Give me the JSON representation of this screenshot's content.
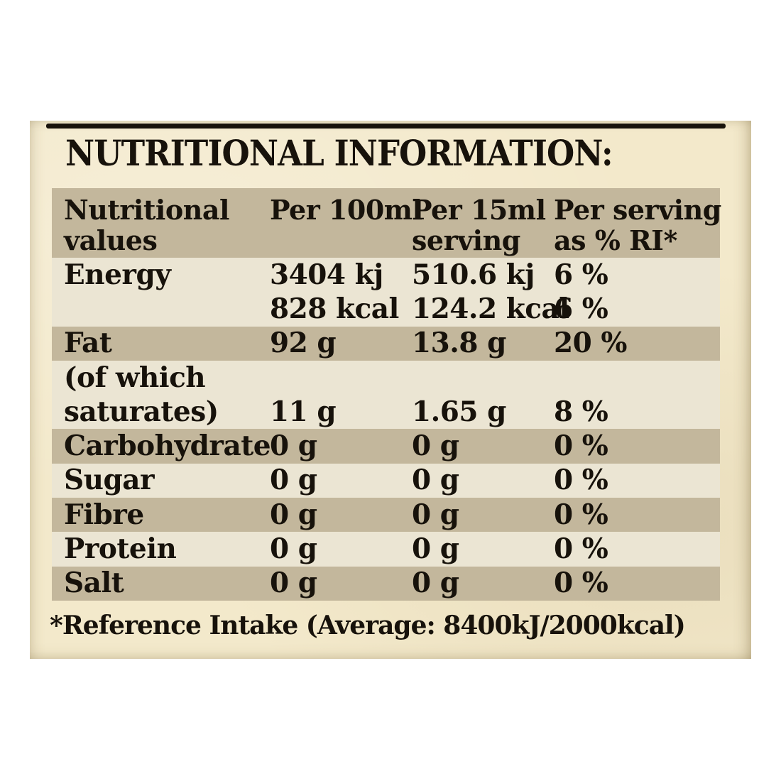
{
  "colors": {
    "page_bg": "#ffffff",
    "paper": "#f3e9cb",
    "band": "#c3b79c",
    "row_light": "#ebe5d3",
    "ink": "#17120b"
  },
  "label": {
    "title": "NUTRITIONAL INFORMATION:",
    "footnote": "*Reference Intake (Average: 8400kJ/2000kcal)"
  },
  "table": {
    "header": {
      "shade": "band",
      "columns": [
        {
          "lines": [
            "Nutritional",
            "values"
          ]
        },
        {
          "lines": [
            "Per 100ml"
          ]
        },
        {
          "lines": [
            "Per 15ml",
            "serving"
          ]
        },
        {
          "lines": [
            "Per serving",
            "as % RI*"
          ]
        }
      ]
    },
    "rows": [
      {
        "shade": "light",
        "cells": [
          "Energy",
          "3404 kj",
          "510.6 kj",
          "6 %"
        ]
      },
      {
        "shade": "light",
        "cells": [
          "",
          "828 kcal",
          "124.2 kcal",
          "6 %"
        ]
      },
      {
        "shade": "band",
        "cells": [
          "Fat",
          "92 g",
          "13.8 g",
          "20 %"
        ]
      },
      {
        "shade": "light",
        "cells": [
          "(of which",
          "",
          "",
          ""
        ]
      },
      {
        "shade": "light",
        "cells": [
          "saturates)",
          "11 g",
          "1.65 g",
          "8 %"
        ]
      },
      {
        "shade": "band",
        "cells": [
          "Carbohydrate",
          "0 g",
          "0 g",
          "0 %"
        ]
      },
      {
        "shade": "light",
        "cells": [
          "Sugar",
          "0 g",
          "0 g",
          "0 %"
        ]
      },
      {
        "shade": "band",
        "cells": [
          "Fibre",
          "0 g",
          "0 g",
          "0 %"
        ]
      },
      {
        "shade": "light",
        "cells": [
          "Protein",
          "0 g",
          "0 g",
          "0 %"
        ]
      },
      {
        "shade": "band",
        "cells": [
          "Salt",
          "0 g",
          "0 g",
          "0 %"
        ]
      }
    ]
  }
}
